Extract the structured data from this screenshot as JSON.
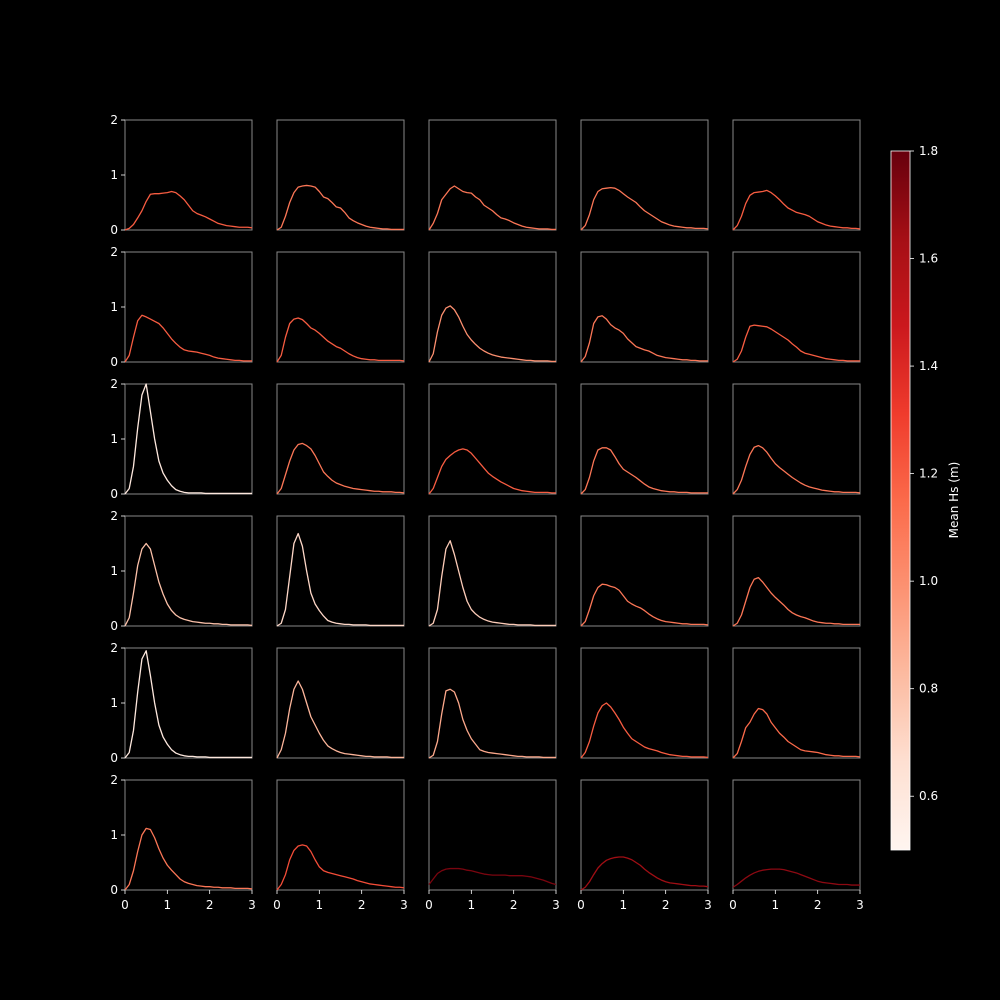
{
  "chart_data": {
    "type": "line",
    "grid": false,
    "background": "#000000",
    "frame_color": "#888888",
    "x_ticks": [
      0,
      1,
      2,
      3
    ],
    "y_ticks": [
      0,
      1,
      2
    ],
    "xlim": [
      0,
      3
    ],
    "ylim": [
      0,
      2
    ],
    "rows": 6,
    "cols": 5,
    "colorbar": {
      "label": "Mean Hs (m)",
      "range": [
        0.5,
        1.8
      ],
      "ticks": [
        "0.6",
        "0.8",
        "1.0",
        "1.2",
        "1.4",
        "1.6",
        "1.8"
      ],
      "colormap": "Reds",
      "colors": [
        "#fff5f0",
        "#fee0d2",
        "#fcbba1",
        "#fc9272",
        "#fb6a4a",
        "#ef3b2c",
        "#cb181d",
        "#a50f15",
        "#67000d"
      ]
    },
    "x": [
      0,
      0.1,
      0.2,
      0.3,
      0.4,
      0.5,
      0.6,
      0.7,
      0.8,
      0.9,
      1,
      1.1,
      1.2,
      1.3,
      1.4,
      1.5,
      1.6,
      1.7,
      1.8,
      1.9,
      2,
      2.1,
      2.2,
      2.3,
      2.4,
      2.5,
      2.6,
      2.7,
      2.8,
      2.9,
      3
    ],
    "panels": [
      {
        "mean_hs": 1.2,
        "y": [
          0,
          0.03,
          0.1,
          0.22,
          0.35,
          0.52,
          0.65,
          0.66,
          0.66,
          0.67,
          0.68,
          0.7,
          0.68,
          0.62,
          0.55,
          0.45,
          0.35,
          0.3,
          0.27,
          0.24,
          0.2,
          0.16,
          0.12,
          0.1,
          0.08,
          0.07,
          0.06,
          0.05,
          0.05,
          0.05,
          0.04
        ]
      },
      {
        "mean_hs": 1.1,
        "y": [
          0,
          0.05,
          0.25,
          0.5,
          0.68,
          0.78,
          0.8,
          0.81,
          0.8,
          0.78,
          0.7,
          0.6,
          0.57,
          0.5,
          0.42,
          0.4,
          0.32,
          0.22,
          0.17,
          0.13,
          0.1,
          0.07,
          0.05,
          0.04,
          0.03,
          0.02,
          0.02,
          0.01,
          0.01,
          0.01,
          0.01
        ]
      },
      {
        "mean_hs": 1.1,
        "y": [
          0,
          0.12,
          0.3,
          0.55,
          0.65,
          0.75,
          0.8,
          0.75,
          0.7,
          0.68,
          0.67,
          0.6,
          0.55,
          0.45,
          0.4,
          0.35,
          0.28,
          0.22,
          0.2,
          0.17,
          0.13,
          0.1,
          0.07,
          0.05,
          0.04,
          0.03,
          0.02,
          0.02,
          0.02,
          0.01,
          0.01
        ]
      },
      {
        "mean_hs": 1.1,
        "y": [
          0,
          0.08,
          0.28,
          0.55,
          0.7,
          0.75,
          0.76,
          0.77,
          0.76,
          0.72,
          0.66,
          0.6,
          0.55,
          0.5,
          0.42,
          0.35,
          0.3,
          0.25,
          0.2,
          0.15,
          0.12,
          0.09,
          0.07,
          0.06,
          0.05,
          0.04,
          0.04,
          0.03,
          0.03,
          0.03,
          0.02
        ]
      },
      {
        "mean_hs": 1.2,
        "y": [
          0,
          0.08,
          0.25,
          0.48,
          0.63,
          0.68,
          0.69,
          0.7,
          0.72,
          0.68,
          0.62,
          0.55,
          0.47,
          0.4,
          0.36,
          0.32,
          0.3,
          0.28,
          0.25,
          0.2,
          0.15,
          0.12,
          0.09,
          0.07,
          0.06,
          0.05,
          0.04,
          0.04,
          0.03,
          0.03,
          0.02
        ]
      },
      {
        "mean_hs": 1.2,
        "y": [
          0,
          0.12,
          0.45,
          0.75,
          0.85,
          0.82,
          0.78,
          0.74,
          0.7,
          0.62,
          0.52,
          0.42,
          0.34,
          0.27,
          0.22,
          0.2,
          0.19,
          0.18,
          0.16,
          0.14,
          0.12,
          0.09,
          0.07,
          0.06,
          0.05,
          0.04,
          0.03,
          0.03,
          0.02,
          0.02,
          0.02
        ]
      },
      {
        "mean_hs": 1.2,
        "y": [
          0,
          0.12,
          0.45,
          0.7,
          0.78,
          0.8,
          0.77,
          0.7,
          0.62,
          0.58,
          0.52,
          0.45,
          0.38,
          0.33,
          0.28,
          0.25,
          0.2,
          0.15,
          0.11,
          0.08,
          0.06,
          0.05,
          0.04,
          0.04,
          0.03,
          0.03,
          0.03,
          0.03,
          0.03,
          0.03,
          0.02
        ]
      },
      {
        "mean_hs": 1.0,
        "y": [
          0,
          0.15,
          0.55,
          0.85,
          0.98,
          1.02,
          0.95,
          0.82,
          0.65,
          0.5,
          0.4,
          0.32,
          0.25,
          0.2,
          0.16,
          0.13,
          0.11,
          0.09,
          0.08,
          0.07,
          0.06,
          0.05,
          0.04,
          0.03,
          0.03,
          0.02,
          0.02,
          0.02,
          0.02,
          0.01,
          0.01
        ]
      },
      {
        "mean_hs": 1.1,
        "y": [
          0,
          0.1,
          0.35,
          0.7,
          0.82,
          0.84,
          0.78,
          0.68,
          0.62,
          0.58,
          0.52,
          0.42,
          0.35,
          0.28,
          0.25,
          0.22,
          0.2,
          0.16,
          0.12,
          0.1,
          0.08,
          0.07,
          0.06,
          0.05,
          0.04,
          0.04,
          0.03,
          0.03,
          0.02,
          0.02,
          0.02
        ]
      },
      {
        "mean_hs": 1.2,
        "y": [
          0,
          0.05,
          0.2,
          0.45,
          0.65,
          0.67,
          0.66,
          0.65,
          0.64,
          0.6,
          0.55,
          0.5,
          0.45,
          0.4,
          0.33,
          0.27,
          0.2,
          0.16,
          0.14,
          0.12,
          0.1,
          0.08,
          0.06,
          0.05,
          0.04,
          0.03,
          0.03,
          0.02,
          0.02,
          0.02,
          0.02
        ]
      },
      {
        "mean_hs": 0.6,
        "y": [
          0,
          0.1,
          0.5,
          1.2,
          1.8,
          2.0,
          1.5,
          1.0,
          0.6,
          0.38,
          0.25,
          0.15,
          0.08,
          0.05,
          0.03,
          0.02,
          0.02,
          0.02,
          0.02,
          0.01,
          0.01,
          0.01,
          0.01,
          0.01,
          0.01,
          0.01,
          0.01,
          0.01,
          0.01,
          0.01,
          0.01
        ]
      },
      {
        "mean_hs": 1.1,
        "y": [
          0,
          0.1,
          0.35,
          0.6,
          0.8,
          0.9,
          0.92,
          0.88,
          0.82,
          0.7,
          0.55,
          0.4,
          0.32,
          0.25,
          0.2,
          0.17,
          0.14,
          0.12,
          0.1,
          0.09,
          0.08,
          0.07,
          0.06,
          0.05,
          0.05,
          0.04,
          0.04,
          0.04,
          0.03,
          0.03,
          0.02
        ]
      },
      {
        "mean_hs": 1.2,
        "y": [
          0,
          0.1,
          0.3,
          0.5,
          0.63,
          0.7,
          0.76,
          0.8,
          0.82,
          0.8,
          0.74,
          0.65,
          0.56,
          0.47,
          0.38,
          0.32,
          0.27,
          0.22,
          0.18,
          0.14,
          0.1,
          0.08,
          0.06,
          0.05,
          0.04,
          0.03,
          0.03,
          0.03,
          0.03,
          0.02,
          0.02
        ]
      },
      {
        "mean_hs": 1.1,
        "y": [
          0,
          0.08,
          0.3,
          0.6,
          0.8,
          0.84,
          0.84,
          0.8,
          0.68,
          0.55,
          0.45,
          0.4,
          0.35,
          0.3,
          0.24,
          0.18,
          0.13,
          0.1,
          0.08,
          0.06,
          0.05,
          0.04,
          0.04,
          0.03,
          0.03,
          0.03,
          0.02,
          0.02,
          0.02,
          0.02,
          0.02
        ]
      },
      {
        "mean_hs": 1.1,
        "y": [
          0,
          0.08,
          0.25,
          0.5,
          0.72,
          0.85,
          0.88,
          0.84,
          0.76,
          0.65,
          0.55,
          0.48,
          0.42,
          0.36,
          0.3,
          0.25,
          0.2,
          0.16,
          0.13,
          0.11,
          0.09,
          0.07,
          0.06,
          0.05,
          0.04,
          0.04,
          0.03,
          0.03,
          0.03,
          0.03,
          0.02
        ]
      },
      {
        "mean_hs": 0.8,
        "y": [
          0,
          0.15,
          0.6,
          1.1,
          1.4,
          1.5,
          1.4,
          1.1,
          0.8,
          0.58,
          0.4,
          0.28,
          0.2,
          0.15,
          0.12,
          0.1,
          0.08,
          0.07,
          0.06,
          0.05,
          0.05,
          0.04,
          0.04,
          0.03,
          0.03,
          0.02,
          0.02,
          0.02,
          0.02,
          0.02,
          0.01
        ]
      },
      {
        "mean_hs": 0.7,
        "y": [
          0,
          0.05,
          0.3,
          0.9,
          1.5,
          1.68,
          1.45,
          1.0,
          0.6,
          0.4,
          0.28,
          0.18,
          0.1,
          0.07,
          0.05,
          0.04,
          0.03,
          0.03,
          0.02,
          0.02,
          0.02,
          0.02,
          0.01,
          0.01,
          0.01,
          0.01,
          0.01,
          0.01,
          0.01,
          0.01,
          0.01
        ]
      },
      {
        "mean_hs": 0.75,
        "y": [
          0,
          0.05,
          0.3,
          0.9,
          1.4,
          1.55,
          1.3,
          1.0,
          0.7,
          0.45,
          0.3,
          0.22,
          0.16,
          0.12,
          0.09,
          0.07,
          0.06,
          0.05,
          0.04,
          0.03,
          0.03,
          0.02,
          0.02,
          0.02,
          0.02,
          0.01,
          0.01,
          0.01,
          0.01,
          0.01,
          0.01
        ]
      },
      {
        "mean_hs": 1.1,
        "y": [
          0,
          0.08,
          0.3,
          0.55,
          0.7,
          0.76,
          0.75,
          0.72,
          0.7,
          0.65,
          0.55,
          0.45,
          0.4,
          0.36,
          0.33,
          0.28,
          0.22,
          0.17,
          0.13,
          0.1,
          0.08,
          0.07,
          0.06,
          0.05,
          0.04,
          0.04,
          0.03,
          0.03,
          0.03,
          0.03,
          0.02
        ]
      },
      {
        "mean_hs": 1.1,
        "y": [
          0,
          0.05,
          0.2,
          0.45,
          0.7,
          0.85,
          0.88,
          0.8,
          0.7,
          0.6,
          0.52,
          0.45,
          0.38,
          0.3,
          0.24,
          0.2,
          0.17,
          0.15,
          0.12,
          0.09,
          0.07,
          0.06,
          0.05,
          0.05,
          0.04,
          0.04,
          0.03,
          0.03,
          0.03,
          0.03,
          0.03
        ]
      },
      {
        "mean_hs": 0.6,
        "y": [
          0,
          0.1,
          0.5,
          1.2,
          1.8,
          1.95,
          1.5,
          1.0,
          0.6,
          0.38,
          0.25,
          0.15,
          0.09,
          0.06,
          0.04,
          0.03,
          0.03,
          0.02,
          0.02,
          0.02,
          0.01,
          0.01,
          0.01,
          0.01,
          0.01,
          0.01,
          0.01,
          0.01,
          0.01,
          0.01,
          0.01
        ]
      },
      {
        "mean_hs": 0.85,
        "y": [
          0,
          0.15,
          0.45,
          0.9,
          1.25,
          1.4,
          1.25,
          1.0,
          0.75,
          0.6,
          0.45,
          0.32,
          0.22,
          0.17,
          0.13,
          0.1,
          0.08,
          0.07,
          0.06,
          0.05,
          0.04,
          0.03,
          0.03,
          0.02,
          0.02,
          0.02,
          0.02,
          0.01,
          0.01,
          0.01,
          0.01
        ]
      },
      {
        "mean_hs": 0.9,
        "y": [
          0,
          0.05,
          0.3,
          0.8,
          1.22,
          1.25,
          1.2,
          1.0,
          0.7,
          0.5,
          0.35,
          0.25,
          0.15,
          0.12,
          0.1,
          0.09,
          0.08,
          0.07,
          0.06,
          0.05,
          0.04,
          0.03,
          0.03,
          0.02,
          0.02,
          0.02,
          0.02,
          0.01,
          0.01,
          0.01,
          0.01
        ]
      },
      {
        "mean_hs": 1.2,
        "y": [
          0,
          0.1,
          0.3,
          0.58,
          0.82,
          0.95,
          1.0,
          0.93,
          0.82,
          0.7,
          0.56,
          0.45,
          0.35,
          0.3,
          0.25,
          0.2,
          0.17,
          0.15,
          0.13,
          0.1,
          0.08,
          0.06,
          0.05,
          0.04,
          0.03,
          0.03,
          0.02,
          0.02,
          0.02,
          0.02,
          0.01
        ]
      },
      {
        "mean_hs": 1.15,
        "y": [
          0,
          0.08,
          0.3,
          0.55,
          0.65,
          0.8,
          0.9,
          0.88,
          0.8,
          0.65,
          0.55,
          0.45,
          0.38,
          0.3,
          0.25,
          0.2,
          0.15,
          0.13,
          0.12,
          0.11,
          0.1,
          0.08,
          0.06,
          0.05,
          0.04,
          0.04,
          0.03,
          0.03,
          0.03,
          0.03,
          0.02
        ]
      },
      {
        "mean_hs": 1.1,
        "y": [
          0,
          0.1,
          0.35,
          0.7,
          1.0,
          1.12,
          1.1,
          0.95,
          0.75,
          0.58,
          0.45,
          0.36,
          0.28,
          0.2,
          0.15,
          0.12,
          0.1,
          0.08,
          0.07,
          0.06,
          0.06,
          0.05,
          0.05,
          0.04,
          0.04,
          0.04,
          0.03,
          0.03,
          0.03,
          0.03,
          0.02
        ]
      },
      {
        "mean_hs": 1.25,
        "y": [
          0,
          0.1,
          0.28,
          0.55,
          0.72,
          0.8,
          0.82,
          0.8,
          0.7,
          0.55,
          0.42,
          0.35,
          0.32,
          0.3,
          0.28,
          0.26,
          0.24,
          0.22,
          0.2,
          0.17,
          0.15,
          0.13,
          0.11,
          0.1,
          0.09,
          0.08,
          0.07,
          0.06,
          0.05,
          0.05,
          0.04
        ]
      },
      {
        "mean_hs": 1.75,
        "y": [
          0.1,
          0.2,
          0.3,
          0.35,
          0.38,
          0.39,
          0.39,
          0.39,
          0.38,
          0.36,
          0.35,
          0.33,
          0.31,
          0.29,
          0.28,
          0.27,
          0.27,
          0.27,
          0.27,
          0.26,
          0.26,
          0.26,
          0.26,
          0.25,
          0.24,
          0.22,
          0.2,
          0.18,
          0.15,
          0.12,
          0.1
        ]
      },
      {
        "mean_hs": 1.65,
        "y": [
          0,
          0.05,
          0.15,
          0.28,
          0.4,
          0.48,
          0.54,
          0.57,
          0.59,
          0.6,
          0.6,
          0.58,
          0.55,
          0.5,
          0.45,
          0.38,
          0.32,
          0.27,
          0.22,
          0.18,
          0.15,
          0.13,
          0.12,
          0.11,
          0.1,
          0.09,
          0.08,
          0.08,
          0.07,
          0.07,
          0.06
        ]
      },
      {
        "mean_hs": 1.7,
        "y": [
          0.05,
          0.1,
          0.16,
          0.22,
          0.27,
          0.31,
          0.34,
          0.36,
          0.37,
          0.38,
          0.38,
          0.38,
          0.37,
          0.35,
          0.33,
          0.31,
          0.28,
          0.25,
          0.22,
          0.19,
          0.16,
          0.14,
          0.13,
          0.12,
          0.11,
          0.1,
          0.1,
          0.1,
          0.09,
          0.09,
          0.09
        ]
      }
    ]
  }
}
